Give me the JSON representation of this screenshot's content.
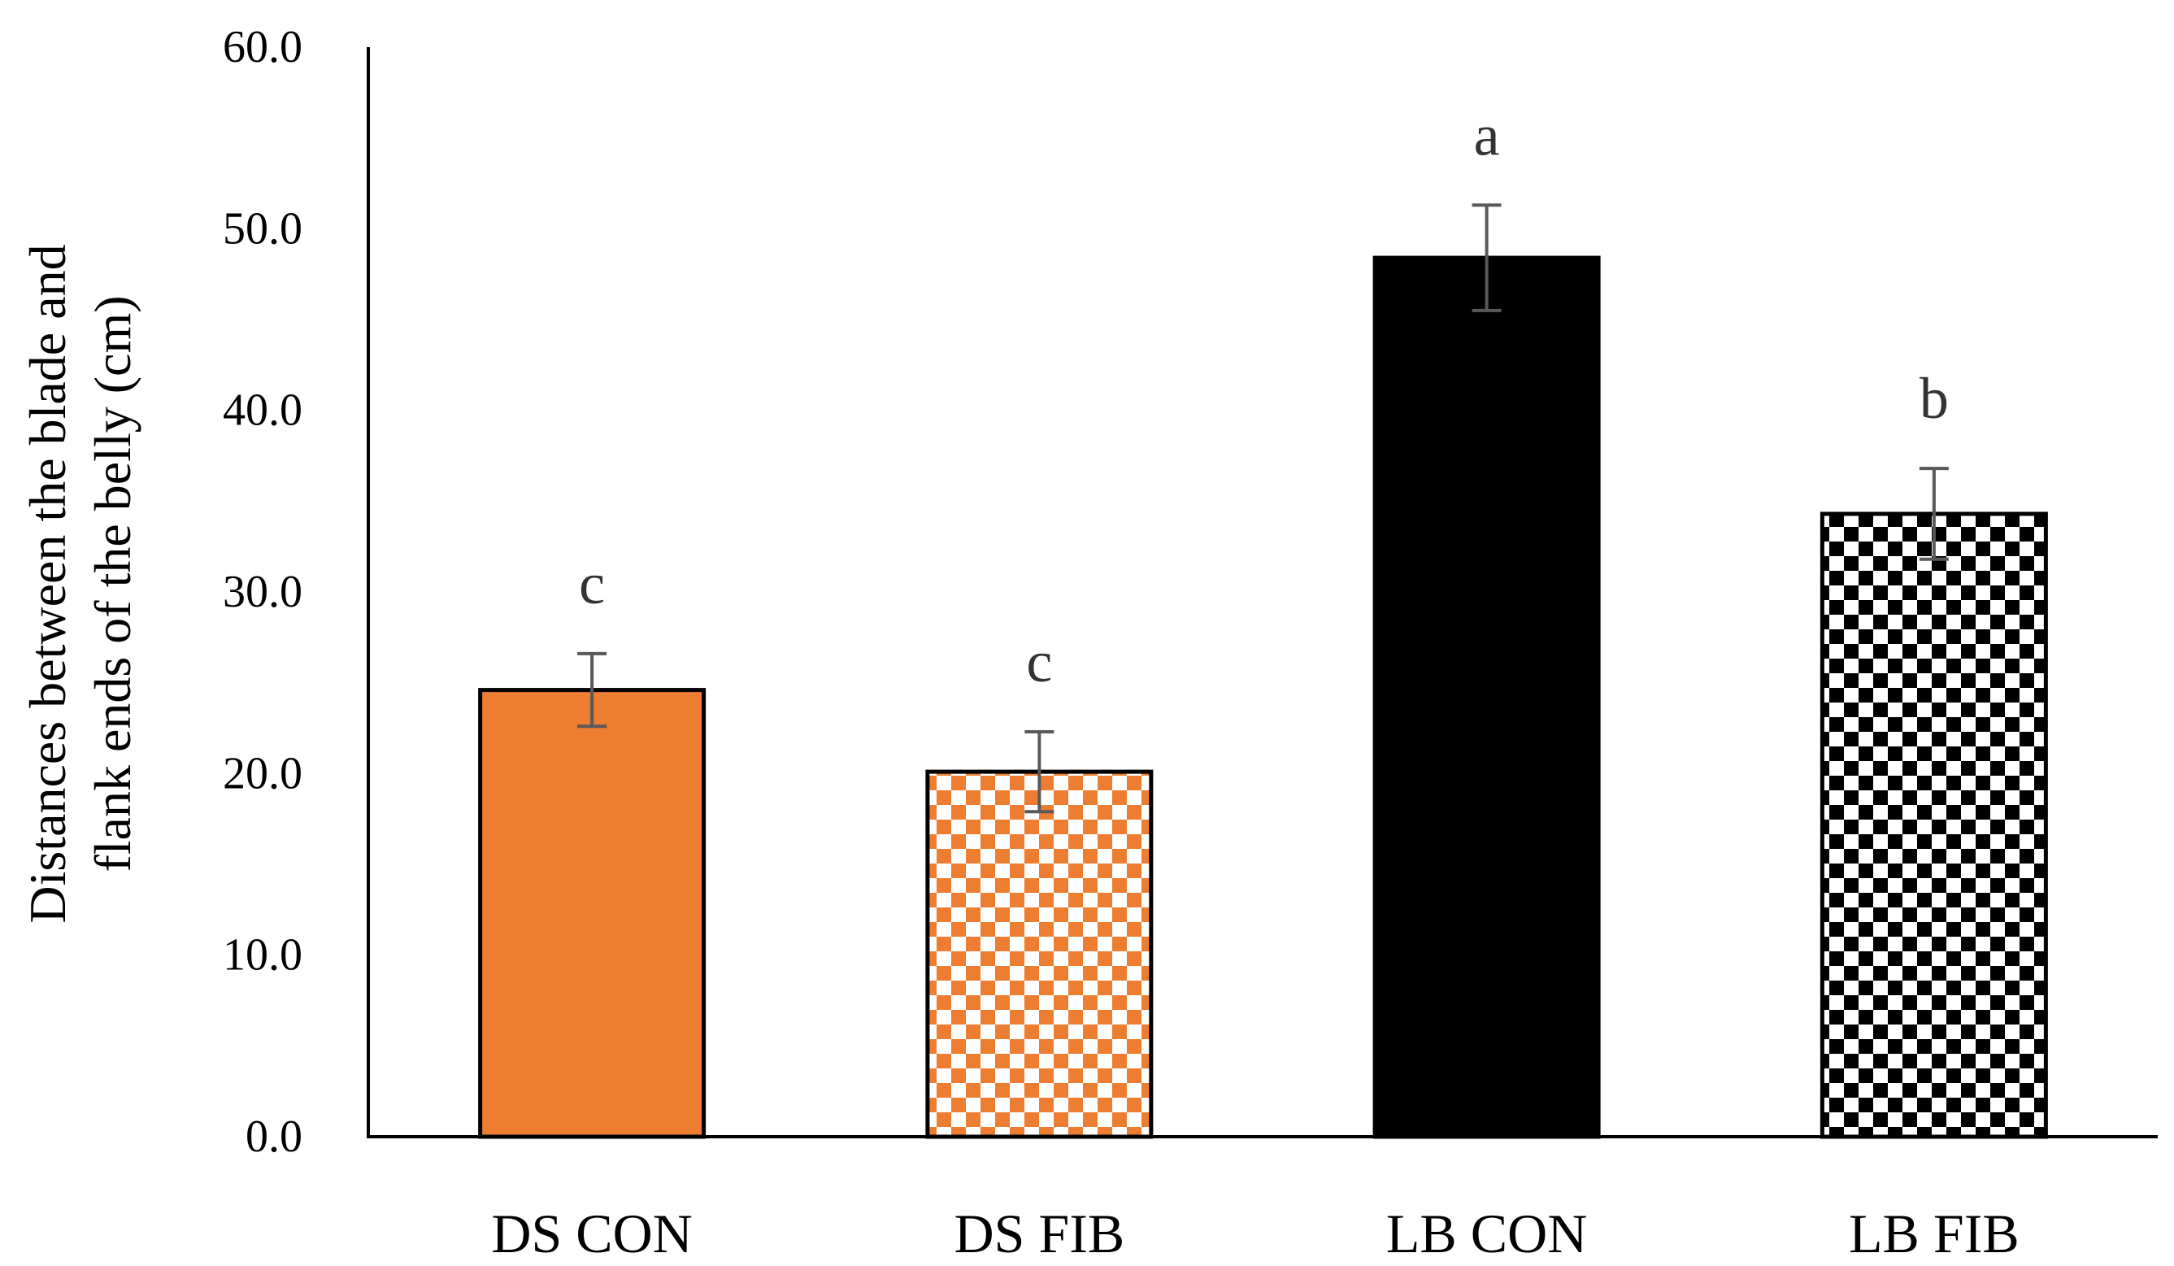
{
  "chart_data": {
    "type": "bar",
    "title": "",
    "xlabel": "",
    "ylabel_lines": [
      "Distances between the blade and",
      "flank ends of the belly (cm)"
    ],
    "ylim": [
      0,
      60
    ],
    "yticks": [
      0,
      10,
      20,
      30,
      40,
      50,
      60
    ],
    "ytick_labels": [
      "0.0",
      "10.0",
      "20.0",
      "30.0",
      "40.0",
      "50.0",
      "60.0"
    ],
    "grid": false,
    "legend": "none",
    "categories": [
      "DS CON",
      "DS FIB",
      "LB CON",
      "LB FIB"
    ],
    "values": [
      24.6,
      20.1,
      48.4,
      34.3
    ],
    "errors": [
      2.0,
      2.2,
      2.9,
      2.5
    ],
    "significance": [
      "c",
      "c",
      "a",
      "b"
    ],
    "styles": [
      {
        "pattern": "solid",
        "color": "#ED7D31",
        "bg": "#ED7D31"
      },
      {
        "pattern": "checker",
        "color": "#ED7D31",
        "bg": "#FFFFFF"
      },
      {
        "pattern": "solid",
        "color": "#000000",
        "bg": "#000000"
      },
      {
        "pattern": "checker",
        "color": "#000000",
        "bg": "#FFFFFF"
      }
    ],
    "error_bar_color": "#595959",
    "label_color": "#333333"
  }
}
